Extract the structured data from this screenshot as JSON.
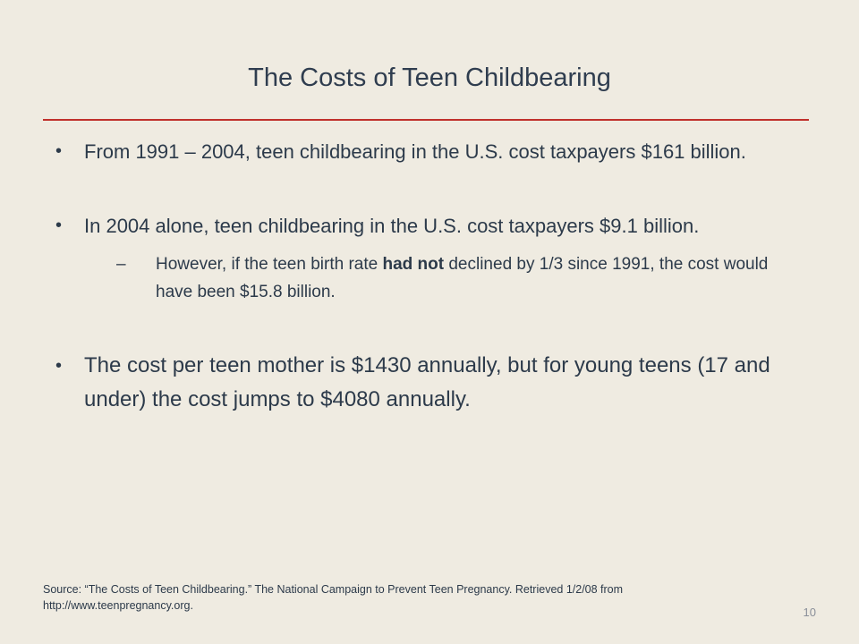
{
  "slide": {
    "title": "The Costs of Teen Childbearing",
    "bullets": [
      {
        "text": "From 1991 – 2004, teen childbearing in the U.S. cost taxpayers $161 billion."
      },
      {
        "text": "In 2004 alone, teen childbearing in the U.S. cost taxpayers $9.1 billion.",
        "sub": {
          "dash": "–",
          "before": "However, if the teen birth rate ",
          "bold": "had not",
          "after": " declined by 1/3 since 1991, the cost would have been $15.8 billion."
        }
      },
      {
        "text": "The cost per teen mother is $1430 annually, but for young teens (17 and under) the cost jumps to $4080 annually."
      }
    ],
    "bullet_glyph": "•",
    "source": "Source: “The Costs of Teen Childbearing.” The National Campaign to Prevent Teen Pregnancy. Retrieved 1/2/08 from http://www.teenpregnancy.org.",
    "page_number": "10",
    "colors": {
      "background": "#efebe1",
      "text": "#2c3a4a",
      "rule": "#c0302b"
    }
  }
}
